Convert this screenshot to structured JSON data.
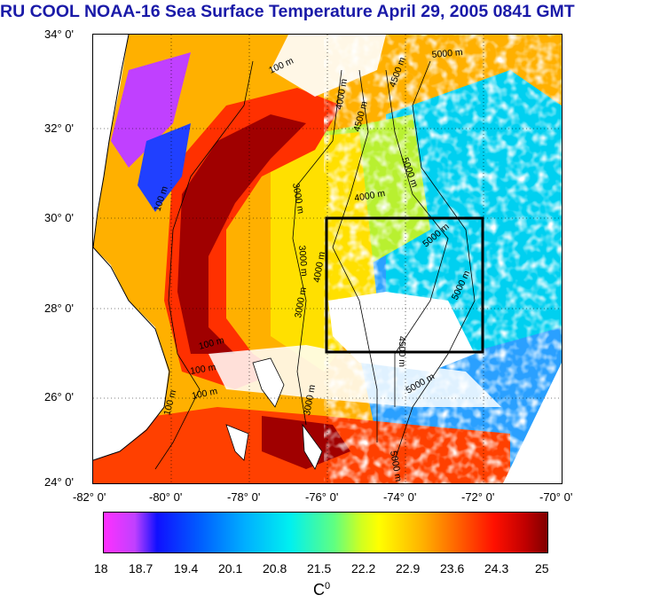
{
  "title": "RU COOL  NOAA-16 Sea Surface Temperature April 29, 2005 0841 GMT",
  "latitude_labels": [
    "34° 0'",
    "32° 0'",
    "30° 0'",
    "28° 0'",
    "26° 0'",
    "24° 0'"
  ],
  "longitude_labels": [
    "-82° 0'",
    "-80° 0'",
    "-78° 0'",
    "-76° 0'",
    "-74° 0'",
    "-72° 0'",
    "-70° 0'"
  ],
  "extent": {
    "lon_min": -82,
    "lon_max": -70,
    "lat_min": 24,
    "lat_max": 34
  },
  "study_box": {
    "lon_min": -76,
    "lon_max": -72,
    "lat_min": 27,
    "lat_max": 30
  },
  "contour_labels": [
    "100 m",
    "100 m",
    "100 m",
    "100 m",
    "100 m",
    "100 m",
    "3000 m",
    "3000 m",
    "3000 m",
    "3000 m",
    "4000 m",
    "4000 m",
    "4000 m",
    "4500 m",
    "4500 m",
    "4500 m",
    "5000 m",
    "5000 m",
    "5000 m",
    "5000 m",
    "5000 m",
    "5000 m"
  ],
  "colorbar": {
    "min": 18,
    "max": 25,
    "tick_labels": [
      "18",
      "18.7",
      "19.4",
      "20.1",
      "20.8",
      "21.5",
      "22.2",
      "22.9",
      "23.6",
      "24.3",
      "25"
    ],
    "unit_base": "C",
    "unit_sup": "0"
  },
  "colors": {
    "title": "#1a1aa8",
    "land": "#ffffff",
    "warm": "#8b0000",
    "cool": "#0040ff"
  }
}
